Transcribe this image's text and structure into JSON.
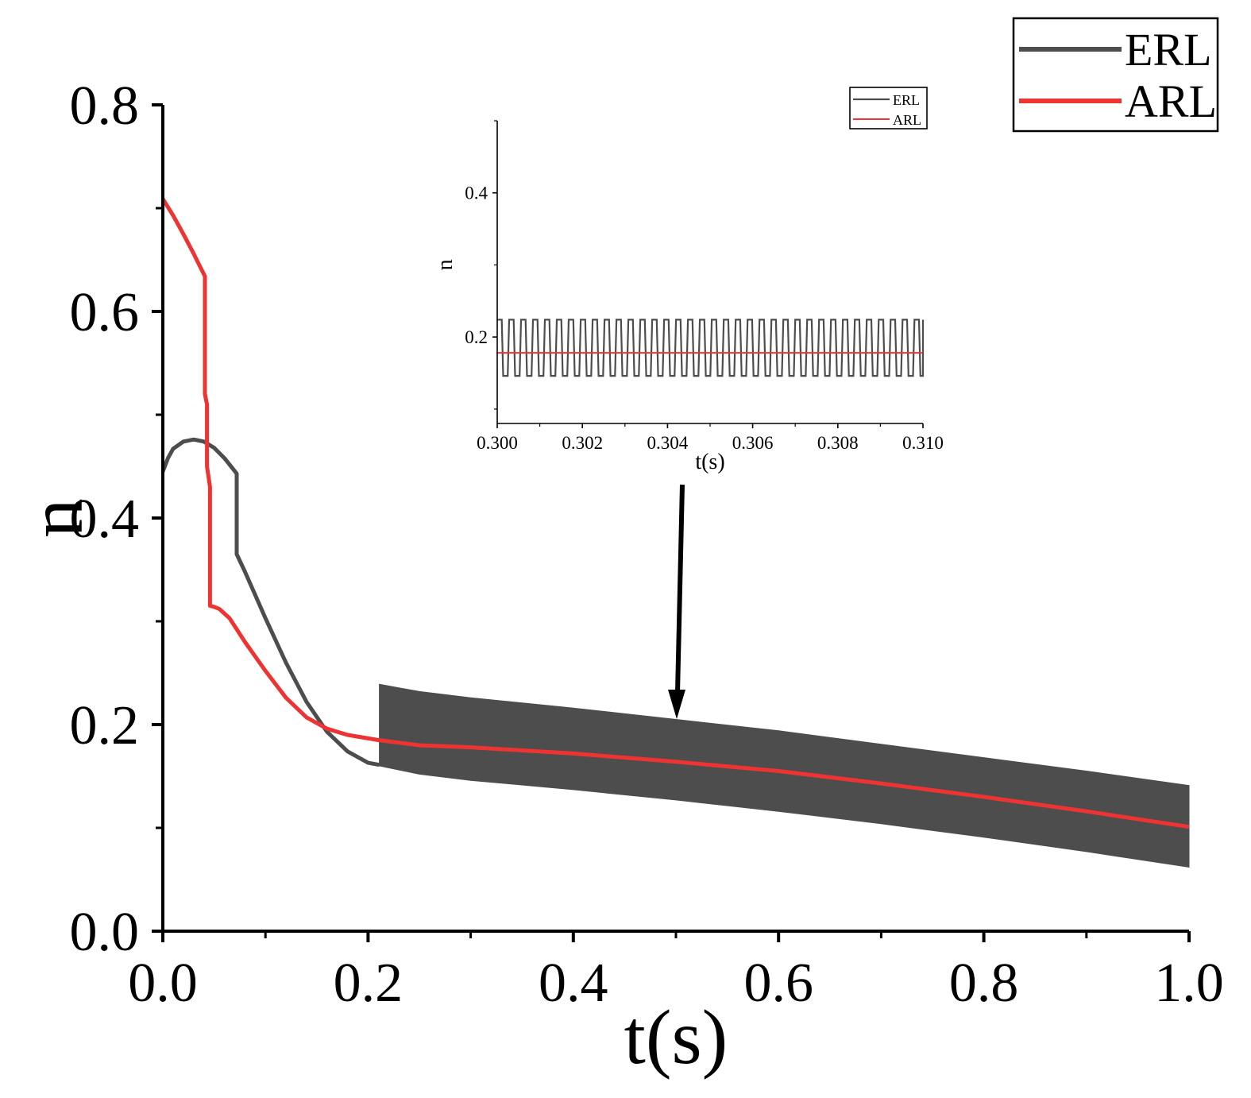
{
  "colors": {
    "erl": "#4d4d4d",
    "arl": "#ee3333",
    "axis": "#000000",
    "background": "#ffffff"
  },
  "chart_data": [
    {
      "id": "main",
      "type": "line",
      "title": "",
      "xlabel": "t(s)",
      "ylabel": "u",
      "xlim": [
        0.0,
        1.0
      ],
      "ylim": [
        0.0,
        0.8
      ],
      "xticks": [
        0.0,
        0.2,
        0.4,
        0.6,
        0.8,
        1.0
      ],
      "xtick_labels": [
        "0.0",
        "0.2",
        "0.4",
        "0.6",
        "0.8",
        "1.0"
      ],
      "yticks": [
        0.0,
        0.2,
        0.4,
        0.6,
        0.8
      ],
      "ytick_labels": [
        "0.0",
        "0.2",
        "0.4",
        "0.6",
        "0.8"
      ],
      "legend_position": "top-right",
      "annotation": "arrow pointing down to t = 0.5 marking the zoomed region",
      "series": [
        {
          "name": "ERL",
          "color": "#4d4d4d",
          "points": [
            [
              0.0,
              0.445
            ],
            [
              0.005,
              0.458
            ],
            [
              0.01,
              0.467
            ],
            [
              0.02,
              0.474
            ],
            [
              0.03,
              0.476
            ],
            [
              0.04,
              0.474
            ],
            [
              0.05,
              0.468
            ],
            [
              0.06,
              0.458
            ],
            [
              0.072,
              0.443
            ],
            [
              0.072,
              0.365
            ],
            [
              0.08,
              0.348
            ],
            [
              0.1,
              0.303
            ],
            [
              0.12,
              0.26
            ],
            [
              0.14,
              0.222
            ],
            [
              0.16,
              0.193
            ],
            [
              0.18,
              0.174
            ],
            [
              0.2,
              0.163
            ],
            [
              0.211,
              0.161
            ]
          ],
          "oscillation_band": {
            "t": [
              0.211,
              0.25,
              0.3,
              0.4,
              0.5,
              0.6,
              0.7,
              0.8,
              0.9,
              1.0
            ],
            "upper": [
              0.239,
              0.232,
              0.226,
              0.216,
              0.205,
              0.194,
              0.181,
              0.168,
              0.155,
              0.141
            ],
            "lower": [
              0.16,
              0.152,
              0.146,
              0.137,
              0.127,
              0.116,
              0.104,
              0.091,
              0.077,
              0.062
            ]
          }
        },
        {
          "name": "ARL",
          "color": "#ee3333",
          "points": [
            [
              0.0,
              0.709
            ],
            [
              0.01,
              0.693
            ],
            [
              0.02,
              0.675
            ],
            [
              0.03,
              0.656
            ],
            [
              0.035,
              0.646
            ],
            [
              0.041,
              0.634
            ],
            [
              0.041,
              0.52
            ],
            [
              0.043,
              0.51
            ],
            [
              0.043,
              0.45
            ],
            [
              0.046,
              0.43
            ],
            [
              0.046,
              0.315
            ],
            [
              0.05,
              0.314
            ],
            [
              0.055,
              0.312
            ],
            [
              0.065,
              0.303
            ],
            [
              0.08,
              0.28
            ],
            [
              0.1,
              0.252
            ],
            [
              0.12,
              0.226
            ],
            [
              0.14,
              0.207
            ],
            [
              0.16,
              0.196
            ],
            [
              0.18,
              0.19
            ],
            [
              0.21,
              0.185
            ],
            [
              0.25,
              0.18
            ],
            [
              0.3,
              0.178
            ],
            [
              0.4,
              0.172
            ],
            [
              0.5,
              0.164
            ],
            [
              0.6,
              0.155
            ],
            [
              0.7,
              0.143
            ],
            [
              0.8,
              0.13
            ],
            [
              0.9,
              0.116
            ],
            [
              1.0,
              0.101
            ]
          ]
        }
      ]
    },
    {
      "id": "inset",
      "type": "line",
      "title": "",
      "xlabel": "t(s)",
      "ylabel": "u",
      "xlim": [
        0.3,
        0.31
      ],
      "ylim": [
        0.08,
        0.5
      ],
      "xticks": [
        0.3,
        0.302,
        0.304,
        0.306,
        0.308,
        0.31
      ],
      "xtick_labels": [
        "0.300",
        "0.302",
        "0.304",
        "0.306",
        "0.308",
        "0.310"
      ],
      "yticks": [
        0.2,
        0.4
      ],
      "ytick_labels": [
        "0.2",
        "0.4"
      ],
      "legend_position": "top-right",
      "series": [
        {
          "name": "ERL",
          "color": "#4d4d4d",
          "type": "square-wave",
          "low": 0.146,
          "high": 0.224,
          "period": 0.00028,
          "t_start": 0.3,
          "t_end": 0.31
        },
        {
          "name": "ARL",
          "color": "#ee3333",
          "constant": 0.178
        }
      ]
    }
  ]
}
